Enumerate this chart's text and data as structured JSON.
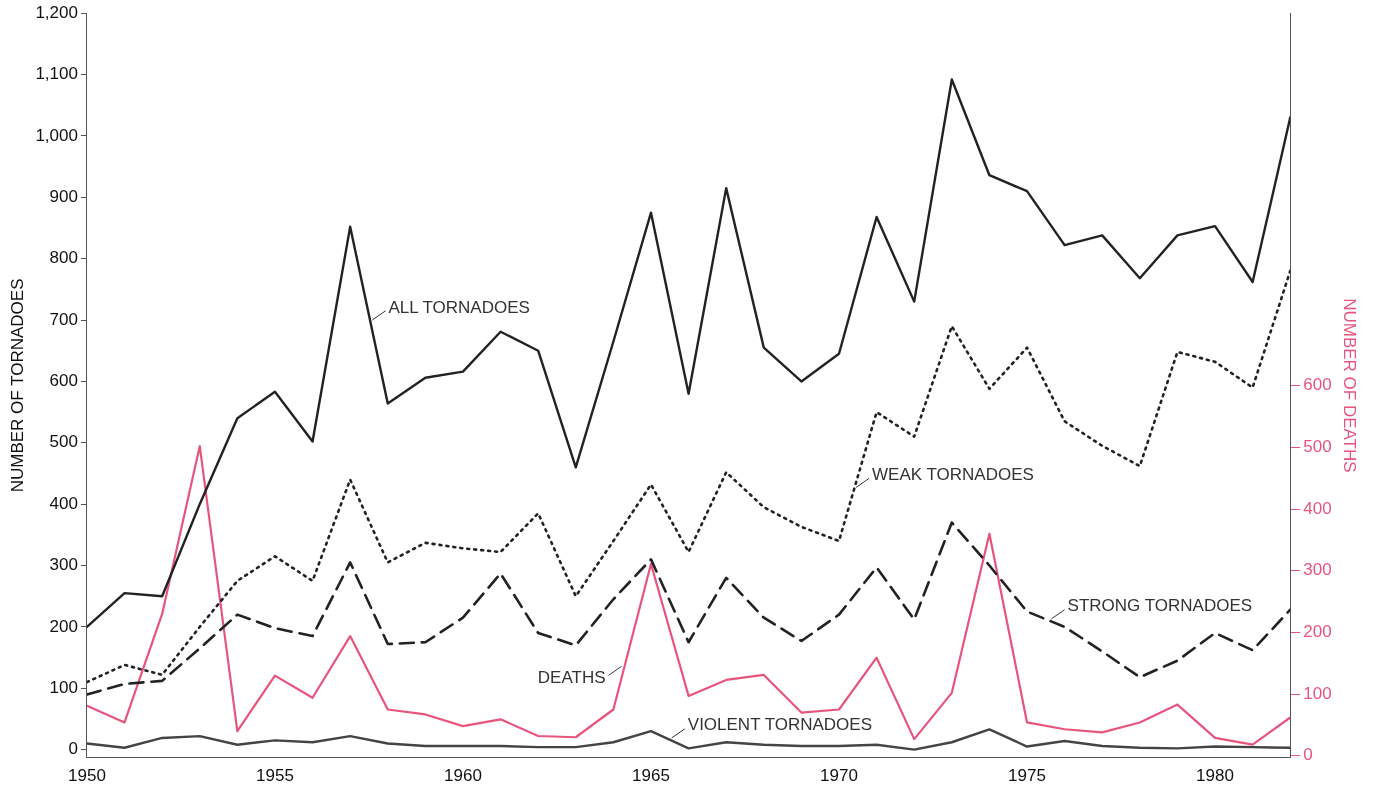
{
  "chart_data": {
    "type": "line",
    "xlabel": null,
    "ylabel": "NUMBER OF TORNADOES",
    "y2label": "NUMBER OF DEATHS",
    "x": [
      1950,
      1951,
      1952,
      1953,
      1954,
      1955,
      1956,
      1957,
      1958,
      1959,
      1960,
      1961,
      1962,
      1963,
      1964,
      1965,
      1966,
      1967,
      1968,
      1969,
      1970,
      1971,
      1972,
      1973,
      1974,
      1975,
      1976,
      1977,
      1978,
      1979,
      1980,
      1981,
      1982
    ],
    "xlim": [
      1950,
      1982
    ],
    "xticks": [
      1950,
      1955,
      1960,
      1965,
      1970,
      1975,
      1980
    ],
    "ylim": [
      -13,
      1200
    ],
    "yticks": [
      {
        "value": 0,
        "label": "0"
      },
      {
        "value": 100,
        "label": "100"
      },
      {
        "value": 200,
        "label": "200"
      },
      {
        "value": 300,
        "label": "300"
      },
      {
        "value": 400,
        "label": "400"
      },
      {
        "value": 500,
        "label": "500"
      },
      {
        "value": 600,
        "label": "600"
      },
      {
        "value": 700,
        "label": "700"
      },
      {
        "value": 800,
        "label": "800"
      },
      {
        "value": 900,
        "label": "900"
      },
      {
        "value": 1000,
        "label": "1,000"
      },
      {
        "value": 1100,
        "label": "1,100"
      },
      {
        "value": 1200,
        "label": "1,200"
      }
    ],
    "y2lim": [
      -3,
      1204
    ],
    "y2ticks": [
      0,
      100,
      200,
      300,
      400,
      500,
      600
    ],
    "grid": false,
    "legend": false,
    "marker": "none",
    "series": [
      {
        "color": "#222222",
        "line_style": "solid",
        "values": [
          200,
          255,
          250,
          400,
          540,
          583,
          502,
          852,
          564,
          606,
          616,
          681,
          650,
          460,
          665,
          875,
          580,
          915,
          655,
          600,
          645,
          868,
          730,
          1092,
          936,
          910,
          822,
          838,
          768,
          838,
          853,
          762,
          1030
        ]
      },
      {
        "color": "#222222",
        "line_style": "dotted",
        "values": [
          110,
          138,
          122,
          200,
          275,
          315,
          275,
          440,
          305,
          337,
          328,
          322,
          385,
          250,
          340,
          432,
          322,
          452,
          395,
          363,
          340,
          550,
          510,
          690,
          588,
          655,
          535,
          495,
          462,
          648,
          632,
          590,
          780
        ]
      },
      {
        "color": "#222222",
        "line_style": "dashed",
        "values": [
          90,
          107,
          112,
          165,
          220,
          198,
          185,
          305,
          172,
          175,
          215,
          287,
          190,
          170,
          245,
          310,
          175,
          280,
          215,
          177,
          220,
          297,
          212,
          370,
          300,
          225,
          200,
          160,
          118,
          145,
          190,
          162,
          228
        ]
      },
      {
        "color": "#444444",
        "line_style": "solid",
        "values": [
          10,
          3,
          19,
          22,
          8,
          15,
          12,
          22,
          10,
          6,
          6,
          6,
          4,
          4,
          12,
          30,
          2,
          12,
          8,
          6,
          6,
          8,
          0,
          12,
          33,
          5,
          14,
          6,
          3,
          2,
          5,
          4,
          3
        ]
      },
      {
        "color": "#e8557c",
        "line_style": "solid",
        "axis": "y2",
        "values": [
          81,
          54,
          230,
          502,
          40,
          130,
          94,
          194,
          75,
          67,
          48,
          59,
          32,
          30,
          75,
          311,
          97,
          123,
          131,
          70,
          75,
          159,
          27,
          102,
          360,
          54,
          43,
          38,
          54,
          83,
          29,
          18,
          62
        ]
      }
    ],
    "annotations": [
      {
        "text": "ALL TORNADOES",
        "x": 1957.54,
        "y": 697
      },
      {
        "text": "WEAK TORNADOES",
        "x": 1970.4,
        "y": 424
      },
      {
        "text": "STRONG TORNADOES",
        "x": 1975.6,
        "y": 210
      },
      {
        "text": "DEATHS",
        "x": 1964.27,
        "y": 139
      },
      {
        "text": "VIOLENT TORNADOES",
        "x": 1965.5,
        "y": 16
      }
    ]
  }
}
